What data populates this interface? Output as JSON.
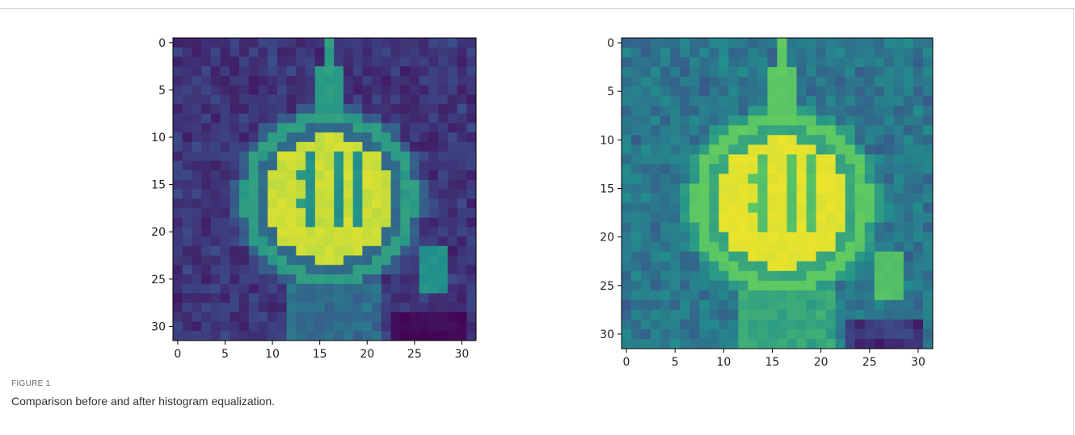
{
  "figure": {
    "label": "FIGURE 1",
    "caption": "Comparison before and after histogram equalization.",
    "panels": [
      {
        "type": "heatmap",
        "xlim": [
          -0.5,
          31.5
        ],
        "ylim": [
          31.5,
          -0.5
        ],
        "xticks": [
          0,
          5,
          10,
          15,
          20,
          25,
          30
        ],
        "yticks": [
          0,
          5,
          10,
          15,
          20,
          25,
          30
        ]
      },
      {
        "type": "heatmap",
        "xlim": [
          -0.5,
          31.5
        ],
        "ylim": [
          31.5,
          -0.5
        ],
        "xticks": [
          0,
          5,
          10,
          15,
          20,
          25,
          30
        ],
        "yticks": [
          0,
          5,
          10,
          15,
          20,
          25,
          30
        ]
      }
    ]
  }
}
